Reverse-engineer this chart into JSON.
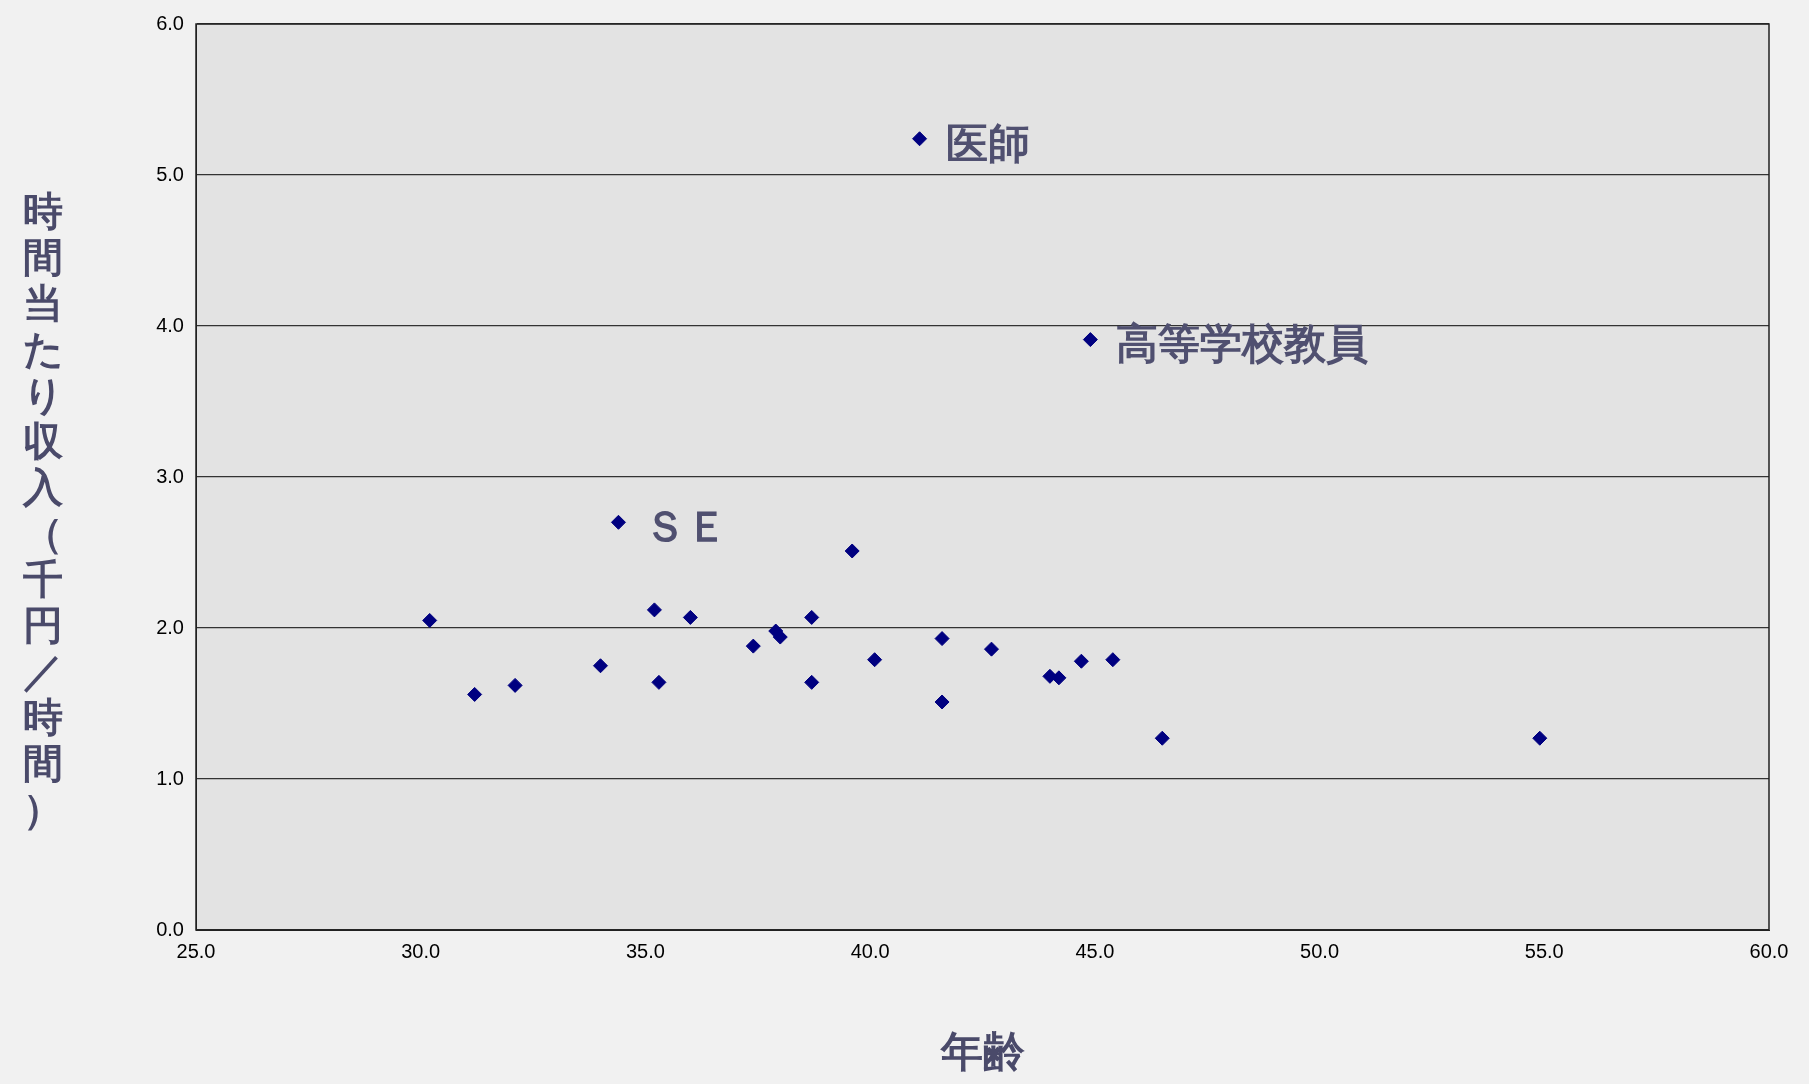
{
  "chart_data": {
    "type": "scatter",
    "xlabel": "年齢",
    "ylabel": "時間当たり収入（千円／時間）",
    "marker": "diamond",
    "grid": "y",
    "legend": false,
    "xlim": [
      25,
      60
    ],
    "ylim": [
      0,
      6
    ],
    "xticks": [
      {
        "value": 25,
        "label": "25.0"
      },
      {
        "value": 30,
        "label": "30.0"
      },
      {
        "value": 35,
        "label": "35.0"
      },
      {
        "value": 40,
        "label": "40.0"
      },
      {
        "value": 45,
        "label": "45.0"
      },
      {
        "value": 50,
        "label": "50.0"
      },
      {
        "value": 55,
        "label": "55.0"
      },
      {
        "value": 60,
        "label": "60.0"
      }
    ],
    "yticks": [
      {
        "value": 0,
        "label": "0.0"
      },
      {
        "value": 1,
        "label": "1.0"
      },
      {
        "value": 2,
        "label": "2.0"
      },
      {
        "value": 3,
        "label": "3.0"
      },
      {
        "value": 4,
        "label": "4.0"
      },
      {
        "value": 5,
        "label": "5.0"
      },
      {
        "value": 6,
        "label": "6.0"
      }
    ],
    "series": [
      {
        "color": "#000080",
        "x": [
          30.2,
          31.2,
          32.1,
          34.0,
          34.4,
          35.2,
          35.3,
          36.0,
          37.4,
          37.9,
          38.0,
          38.7,
          38.7,
          39.6,
          40.1,
          41.1,
          41.6,
          41.6,
          42.7,
          44.0,
          44.2,
          44.7,
          44.9,
          45.4,
          46.5,
          54.9
        ],
        "values": [
          2.05,
          1.56,
          1.62,
          1.75,
          2.7,
          2.12,
          1.64,
          2.07,
          1.88,
          1.98,
          1.94,
          2.07,
          1.64,
          2.51,
          1.79,
          5.24,
          1.93,
          1.51,
          1.86,
          1.68,
          1.67,
          1.78,
          3.91,
          1.79,
          1.27,
          1.27
        ]
      }
    ],
    "annotations": [
      {
        "text": "医師",
        "x": 41.1,
        "y": 5.24
      },
      {
        "text": "高等学校教員",
        "x": 44.9,
        "y": 3.91
      },
      {
        "text": "ＳＥ",
        "x": 34.4,
        "y": 2.7
      }
    ]
  }
}
